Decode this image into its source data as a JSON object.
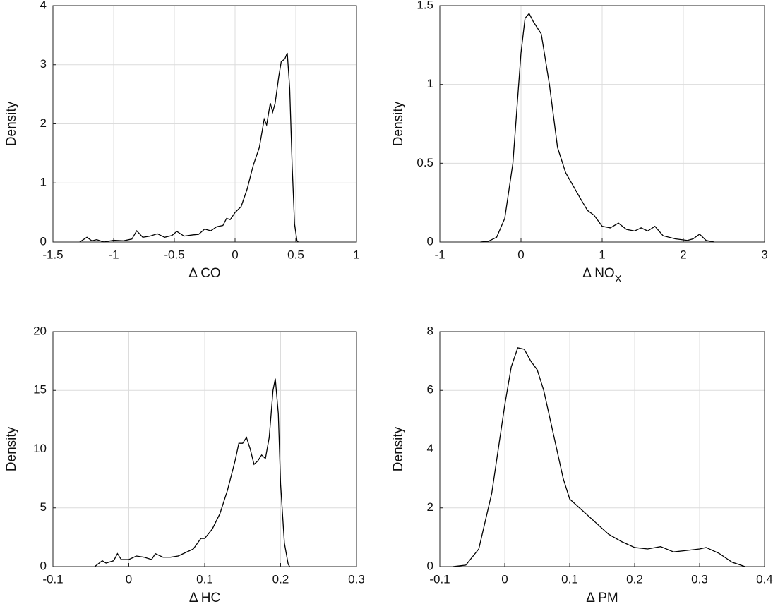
{
  "chart_data": [
    {
      "type": "line",
      "xlabel": "Δ CO",
      "ylabel": "Density",
      "grid": true,
      "color": "#000000",
      "xlim": [
        -1.5,
        1
      ],
      "xticks": [
        -1.5,
        -1,
        -0.5,
        0,
        0.5,
        1
      ],
      "ylim": [
        0,
        4
      ],
      "yticks": [
        0,
        1,
        2,
        3,
        4
      ],
      "x": [
        -1.28,
        -1.22,
        -1.18,
        -1.14,
        -1.08,
        -1.0,
        -0.92,
        -0.85,
        -0.81,
        -0.76,
        -0.7,
        -0.64,
        -0.58,
        -0.52,
        -0.48,
        -0.42,
        -0.35,
        -0.3,
        -0.25,
        -0.2,
        -0.15,
        -0.1,
        -0.07,
        -0.04,
        0,
        0.05,
        0.1,
        0.15,
        0.2,
        0.24,
        0.26,
        0.29,
        0.31,
        0.33,
        0.36,
        0.38,
        0.41,
        0.43,
        0.45,
        0.47,
        0.49,
        0.51,
        0.52
      ],
      "values": [
        0,
        0.08,
        0.02,
        0.04,
        0,
        0.03,
        0.02,
        0.05,
        0.19,
        0.08,
        0.1,
        0.14,
        0.08,
        0.11,
        0.18,
        0.1,
        0.12,
        0.13,
        0.22,
        0.19,
        0.26,
        0.28,
        0.4,
        0.38,
        0.5,
        0.6,
        0.9,
        1.3,
        1.6,
        2.08,
        1.98,
        2.35,
        2.2,
        2.35,
        2.8,
        3.05,
        3.1,
        3.2,
        2.6,
        1.3,
        0.3,
        0.02,
        0
      ]
    },
    {
      "type": "line",
      "xlabel": "Δ NO",
      "xlabel_sub": "X",
      "ylabel": "Density",
      "grid": true,
      "color": "#000000",
      "xlim": [
        -1,
        3
      ],
      "xticks": [
        -1,
        0,
        1,
        2,
        3
      ],
      "ylim": [
        0,
        1.5
      ],
      "yticks": [
        0,
        0.5,
        1,
        1.5
      ],
      "x": [
        -0.5,
        -0.4,
        -0.3,
        -0.2,
        -0.1,
        0,
        0.05,
        0.1,
        0.15,
        0.25,
        0.35,
        0.45,
        0.55,
        0.65,
        0.75,
        0.82,
        0.9,
        1.0,
        1.1,
        1.2,
        1.3,
        1.4,
        1.48,
        1.56,
        1.65,
        1.75,
        1.9,
        2.05,
        2.12,
        2.2,
        2.28,
        2.38
      ],
      "values": [
        0,
        0.005,
        0.03,
        0.15,
        0.5,
        1.2,
        1.42,
        1.45,
        1.4,
        1.32,
        1.0,
        0.6,
        0.44,
        0.35,
        0.26,
        0.2,
        0.17,
        0.1,
        0.09,
        0.12,
        0.08,
        0.07,
        0.09,
        0.07,
        0.1,
        0.04,
        0.02,
        0.01,
        0.02,
        0.05,
        0.01,
        0
      ]
    },
    {
      "type": "line",
      "xlabel": "Δ HC",
      "ylabel": "Density",
      "grid": true,
      "color": "#000000",
      "xlim": [
        -0.1,
        0.3
      ],
      "xticks": [
        -0.1,
        0,
        0.1,
        0.2,
        0.3
      ],
      "ylim": [
        0,
        20
      ],
      "yticks": [
        0,
        5,
        10,
        15,
        20
      ],
      "x": [
        -0.045,
        -0.035,
        -0.03,
        -0.02,
        -0.015,
        -0.01,
        0,
        0.01,
        0.02,
        0.03,
        0.035,
        0.045,
        0.055,
        0.065,
        0.075,
        0.085,
        0.095,
        0.1,
        0.11,
        0.12,
        0.13,
        0.14,
        0.145,
        0.15,
        0.155,
        0.16,
        0.165,
        0.17,
        0.175,
        0.18,
        0.185,
        0.19,
        0.193,
        0.197,
        0.2,
        0.205,
        0.21,
        0.212
      ],
      "values": [
        0,
        0.5,
        0.3,
        0.5,
        1.1,
        0.6,
        0.6,
        0.9,
        0.8,
        0.6,
        1.1,
        0.8,
        0.8,
        0.9,
        1.2,
        1.5,
        2.4,
        2.4,
        3.2,
        4.5,
        6.5,
        9,
        10.5,
        10.5,
        11,
        10,
        8.7,
        9,
        9.5,
        9.2,
        11,
        15,
        16,
        13,
        7,
        2,
        0.2,
        0
      ]
    },
    {
      "type": "line",
      "xlabel": "Δ PM",
      "ylabel": "Density",
      "grid": true,
      "color": "#000000",
      "xlim": [
        -0.1,
        0.4
      ],
      "xticks": [
        -0.1,
        0,
        0.1,
        0.2,
        0.3,
        0.4
      ],
      "ylim": [
        0,
        8
      ],
      "yticks": [
        0,
        2,
        4,
        6,
        8
      ],
      "x": [
        -0.08,
        -0.06,
        -0.04,
        -0.02,
        0,
        0.01,
        0.02,
        0.03,
        0.04,
        0.05,
        0.06,
        0.07,
        0.08,
        0.09,
        0.1,
        0.12,
        0.14,
        0.16,
        0.18,
        0.2,
        0.22,
        0.24,
        0.26,
        0.28,
        0.3,
        0.31,
        0.33,
        0.35,
        0.37
      ],
      "values": [
        0,
        0.05,
        0.6,
        2.5,
        5.5,
        6.8,
        7.45,
        7.4,
        7.0,
        6.7,
        6,
        5,
        4,
        3,
        2.3,
        1.9,
        1.5,
        1.1,
        0.85,
        0.65,
        0.6,
        0.68,
        0.5,
        0.55,
        0.6,
        0.65,
        0.45,
        0.15,
        0
      ]
    }
  ]
}
